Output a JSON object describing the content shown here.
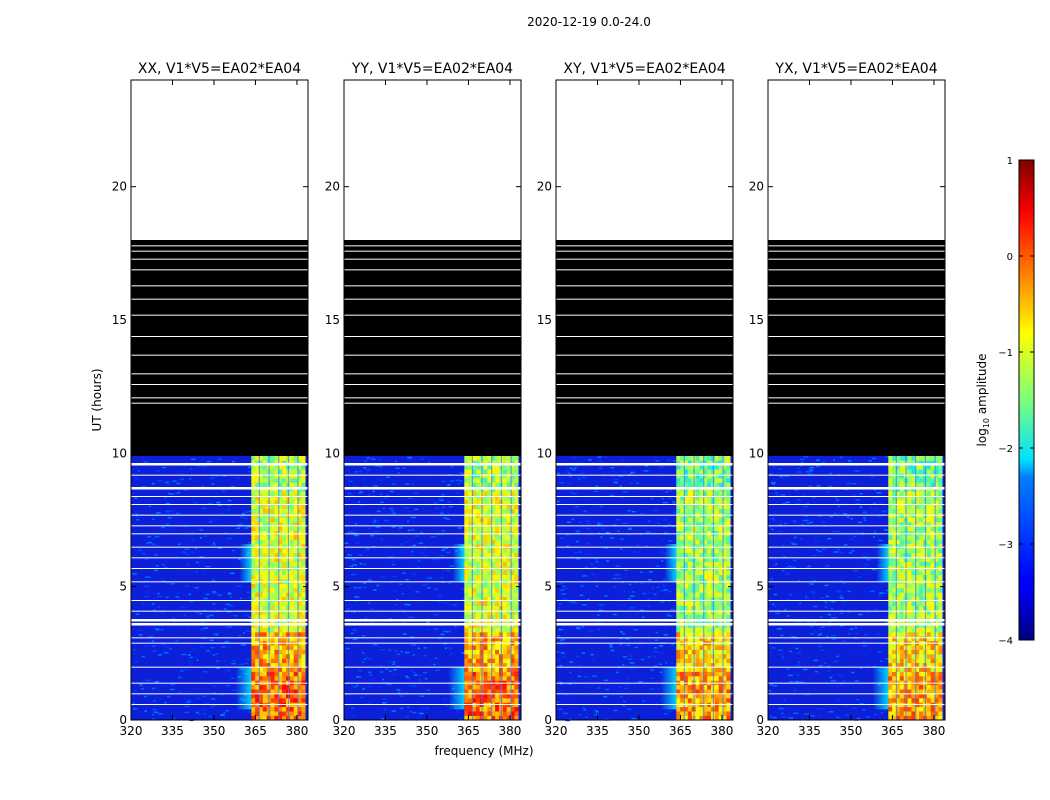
{
  "figure": {
    "suptitle": "2020-12-19 0.0-24.0",
    "xlabel": "frequency (MHz)",
    "ylabel": "UT (hours)"
  },
  "colors": {
    "masked_rows": "#000000",
    "no_data": "#ffffff",
    "frame": "#000000"
  },
  "chart_data": {
    "type": "heatmap",
    "panels": [
      {
        "title": "XX, V1*V5=EA02*EA04"
      },
      {
        "title": "YY, V1*V5=EA02*EA04"
      },
      {
        "title": "XY, V1*V5=EA02*EA04"
      },
      {
        "title": "YX, V1*V5=EA02*EA04"
      }
    ],
    "xlim": [
      320,
      384
    ],
    "ylim": [
      0,
      24
    ],
    "xticks": [
      320,
      335,
      350,
      365,
      380
    ],
    "yticks": [
      0,
      5,
      10,
      15,
      20
    ],
    "data_extent_hours": 18,
    "valid_data_hours": [
      0,
      9.9
    ],
    "masked_block_hours": [
      9.9,
      18
    ],
    "signal_band_mhz": [
      363.5,
      383
    ],
    "strong_channels_mhz": [
      365,
      368.5,
      372,
      375.5,
      379
    ],
    "gap_rows_hours": [
      3.6,
      3.75,
      8.7,
      9.6
    ],
    "colorbar": {
      "label_prefix": "log",
      "label_sub": "10",
      "label_suffix": " amplitude",
      "range": [
        -4,
        1
      ],
      "ticks": [
        "1",
        "0",
        "−1",
        "−2",
        "−3",
        "−4"
      ],
      "colormap": "jet"
    }
  }
}
